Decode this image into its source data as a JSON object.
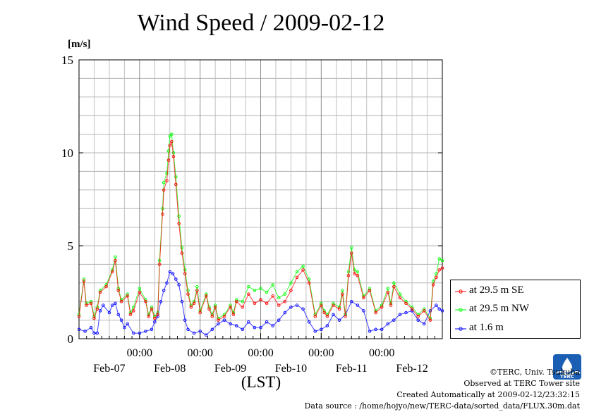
{
  "header": {
    "title": "Wind Speed / 2009-02-12",
    "unit": "[m/s]"
  },
  "credits": {
    "copyright": "©TERC, Univ. Tsukuba",
    "observed": "Observed at TERC Tower site",
    "created": "Created Automatically at 2009-02-12/23:32:15",
    "source": "Data source : /home/hojyo/new/TERC-data/sorted_data/FLUX.30m.dat"
  },
  "chart_data": {
    "type": "line",
    "title": "Wind Speed / 2009-02-12",
    "ylabel": "[m/s]",
    "xlabel": "(LST)",
    "ylim": [
      0,
      15
    ],
    "yticks": [
      0,
      5,
      10,
      15
    ],
    "xlim": [
      0,
      6
    ],
    "x_time_ticks": [
      {
        "x": 1,
        "label": "00:00"
      },
      {
        "x": 2,
        "label": "00:00"
      },
      {
        "x": 3,
        "label": "00:00"
      },
      {
        "x": 4,
        "label": "00:00"
      },
      {
        "x": 5,
        "label": "00:00"
      }
    ],
    "x_date_labels": [
      {
        "x": 0.5,
        "label": "Feb-07"
      },
      {
        "x": 1.5,
        "label": "Feb-08"
      },
      {
        "x": 2.5,
        "label": "Feb-09"
      },
      {
        "x": 3.5,
        "label": "Feb-10"
      },
      {
        "x": 4.5,
        "label": "Feb-11"
      },
      {
        "x": 5.5,
        "label": "Feb-12"
      }
    ],
    "grid": true,
    "legend_position": "bottom-right, outside plot",
    "series": [
      {
        "name": "at 29.5 m SE",
        "color": "#ff0000",
        "points": [
          [
            0,
            1.2
          ],
          [
            0.08,
            3.1
          ],
          [
            0.12,
            1.8
          ],
          [
            0.2,
            1.9
          ],
          [
            0.25,
            1.1
          ],
          [
            0.3,
            1.6
          ],
          [
            0.35,
            2.5
          ],
          [
            0.45,
            2.8
          ],
          [
            0.55,
            3.6
          ],
          [
            0.6,
            4.2
          ],
          [
            0.65,
            2.6
          ],
          [
            0.7,
            2.0
          ],
          [
            0.8,
            2.3
          ],
          [
            0.85,
            1.3
          ],
          [
            0.9,
            1.5
          ],
          [
            1,
            2.5
          ],
          [
            1.1,
            2.0
          ],
          [
            1.15,
            1.2
          ],
          [
            1.2,
            1.6
          ],
          [
            1.25,
            1.1
          ],
          [
            1.3,
            1.3
          ],
          [
            1.33,
            4.0
          ],
          [
            1.38,
            6.7
          ],
          [
            1.4,
            8.0
          ],
          [
            1.45,
            8.5
          ],
          [
            1.48,
            9.6
          ],
          [
            1.5,
            10.4
          ],
          [
            1.53,
            10.6
          ],
          [
            1.56,
            9.8
          ],
          [
            1.6,
            8.3
          ],
          [
            1.65,
            6.2
          ],
          [
            1.7,
            4.6
          ],
          [
            1.75,
            3.5
          ],
          [
            1.8,
            2.4
          ],
          [
            1.85,
            1.7
          ],
          [
            1.9,
            1.9
          ],
          [
            1.95,
            2.6
          ],
          [
            2,
            1.4
          ],
          [
            2.1,
            2.3
          ],
          [
            2.15,
            1.6
          ],
          [
            2.2,
            1.2
          ],
          [
            2.25,
            1.7
          ],
          [
            2.3,
            1.0
          ],
          [
            2.4,
            1.2
          ],
          [
            2.5,
            1.7
          ],
          [
            2.55,
            1.3
          ],
          [
            2.6,
            2.0
          ],
          [
            2.7,
            1.7
          ],
          [
            2.8,
            2.4
          ],
          [
            2.9,
            1.9
          ],
          [
            3.0,
            2.1
          ],
          [
            3.1,
            1.9
          ],
          [
            3.2,
            2.3
          ],
          [
            3.3,
            1.8
          ],
          [
            3.4,
            2.0
          ],
          [
            3.5,
            2.6
          ],
          [
            3.6,
            3.3
          ],
          [
            3.7,
            3.7
          ],
          [
            3.8,
            3.0
          ],
          [
            3.9,
            1.2
          ],
          [
            4.0,
            1.8
          ],
          [
            4.05,
            1.4
          ],
          [
            4.1,
            1.2
          ],
          [
            4.2,
            1.8
          ],
          [
            4.3,
            1.6
          ],
          [
            4.35,
            2.4
          ],
          [
            4.4,
            1.2
          ],
          [
            4.45,
            3.4
          ],
          [
            4.5,
            4.6
          ],
          [
            4.55,
            3.5
          ],
          [
            4.6,
            3.4
          ],
          [
            4.7,
            2.2
          ],
          [
            4.8,
            2.6
          ],
          [
            4.9,
            1.4
          ],
          [
            5.0,
            1.7
          ],
          [
            5.1,
            2.5
          ],
          [
            5.15,
            1.8
          ],
          [
            5.2,
            2.8
          ],
          [
            5.3,
            2.2
          ],
          [
            5.4,
            1.9
          ],
          [
            5.5,
            1.6
          ],
          [
            5.6,
            1.2
          ],
          [
            5.7,
            1.5
          ],
          [
            5.8,
            1.0
          ],
          [
            5.85,
            2.9
          ],
          [
            5.9,
            3.3
          ],
          [
            5.95,
            3.7
          ],
          [
            6.0,
            3.8
          ]
        ]
      },
      {
        "name": "at 29.5 m NW",
        "color": "#00ff00",
        "points": [
          [
            0,
            1.3
          ],
          [
            0.08,
            3.2
          ],
          [
            0.12,
            1.9
          ],
          [
            0.2,
            2.0
          ],
          [
            0.25,
            1.2
          ],
          [
            0.3,
            1.7
          ],
          [
            0.35,
            2.6
          ],
          [
            0.45,
            2.9
          ],
          [
            0.55,
            3.7
          ],
          [
            0.6,
            4.4
          ],
          [
            0.65,
            2.7
          ],
          [
            0.7,
            2.1
          ],
          [
            0.8,
            2.4
          ],
          [
            0.85,
            1.4
          ],
          [
            0.9,
            1.7
          ],
          [
            1,
            2.7
          ],
          [
            1.1,
            2.1
          ],
          [
            1.15,
            1.3
          ],
          [
            1.2,
            1.7
          ],
          [
            1.25,
            1.2
          ],
          [
            1.3,
            1.4
          ],
          [
            1.33,
            4.2
          ],
          [
            1.38,
            7.0
          ],
          [
            1.4,
            8.4
          ],
          [
            1.45,
            8.9
          ],
          [
            1.48,
            10.1
          ],
          [
            1.5,
            10.9
          ],
          [
            1.53,
            11.0
          ],
          [
            1.56,
            10.0
          ],
          [
            1.6,
            8.7
          ],
          [
            1.65,
            6.6
          ],
          [
            1.7,
            4.9
          ],
          [
            1.75,
            3.7
          ],
          [
            1.8,
            2.6
          ],
          [
            1.85,
            1.8
          ],
          [
            1.9,
            2.0
          ],
          [
            1.95,
            2.8
          ],
          [
            2,
            1.5
          ],
          [
            2.1,
            2.4
          ],
          [
            2.15,
            1.7
          ],
          [
            2.2,
            1.3
          ],
          [
            2.25,
            1.8
          ],
          [
            2.3,
            1.1
          ],
          [
            2.4,
            1.3
          ],
          [
            2.5,
            1.8
          ],
          [
            2.55,
            1.4
          ],
          [
            2.6,
            2.1
          ],
          [
            2.7,
            2.0
          ],
          [
            2.8,
            2.8
          ],
          [
            2.9,
            2.6
          ],
          [
            3.0,
            2.7
          ],
          [
            3.1,
            2.5
          ],
          [
            3.2,
            2.9
          ],
          [
            3.3,
            2.2
          ],
          [
            3.4,
            2.4
          ],
          [
            3.5,
            3.0
          ],
          [
            3.6,
            3.6
          ],
          [
            3.7,
            3.9
          ],
          [
            3.8,
            3.2
          ],
          [
            3.9,
            1.3
          ],
          [
            4.0,
            1.9
          ],
          [
            4.05,
            1.5
          ],
          [
            4.1,
            1.3
          ],
          [
            4.2,
            1.9
          ],
          [
            4.3,
            1.7
          ],
          [
            4.35,
            2.6
          ],
          [
            4.4,
            1.3
          ],
          [
            4.45,
            3.6
          ],
          [
            4.5,
            4.9
          ],
          [
            4.55,
            3.7
          ],
          [
            4.6,
            3.6
          ],
          [
            4.7,
            2.3
          ],
          [
            4.8,
            2.7
          ],
          [
            4.9,
            1.5
          ],
          [
            5.0,
            1.8
          ],
          [
            5.1,
            2.7
          ],
          [
            5.15,
            1.9
          ],
          [
            5.2,
            3.0
          ],
          [
            5.3,
            2.4
          ],
          [
            5.4,
            2.0
          ],
          [
            5.5,
            1.7
          ],
          [
            5.6,
            1.3
          ],
          [
            5.7,
            1.6
          ],
          [
            5.8,
            1.1
          ],
          [
            5.85,
            3.1
          ],
          [
            5.9,
            3.5
          ],
          [
            5.95,
            4.3
          ],
          [
            6.0,
            4.2
          ]
        ]
      },
      {
        "name": "at 1.6 m",
        "color": "#0000ff",
        "points": [
          [
            0,
            0.5
          ],
          [
            0.1,
            0.4
          ],
          [
            0.2,
            0.6
          ],
          [
            0.25,
            0.3
          ],
          [
            0.3,
            0.3
          ],
          [
            0.35,
            1.5
          ],
          [
            0.4,
            1.8
          ],
          [
            0.5,
            1.4
          ],
          [
            0.55,
            1.8
          ],
          [
            0.6,
            1.9
          ],
          [
            0.65,
            1.3
          ],
          [
            0.7,
            1.0
          ],
          [
            0.75,
            0.6
          ],
          [
            0.8,
            0.8
          ],
          [
            0.9,
            0.3
          ],
          [
            1.0,
            0.3
          ],
          [
            1.1,
            0.4
          ],
          [
            1.2,
            0.5
          ],
          [
            1.25,
            0.9
          ],
          [
            1.3,
            1.2
          ],
          [
            1.35,
            2.0
          ],
          [
            1.4,
            2.6
          ],
          [
            1.45,
            3.0
          ],
          [
            1.5,
            3.6
          ],
          [
            1.55,
            3.5
          ],
          [
            1.6,
            3.2
          ],
          [
            1.65,
            2.9
          ],
          [
            1.7,
            2.0
          ],
          [
            1.75,
            1.0
          ],
          [
            1.8,
            0.5
          ],
          [
            1.9,
            0.3
          ],
          [
            2.0,
            0.4
          ],
          [
            2.1,
            0.2
          ],
          [
            2.2,
            0.5
          ],
          [
            2.3,
            0.8
          ],
          [
            2.4,
            1.0
          ],
          [
            2.5,
            0.8
          ],
          [
            2.6,
            0.7
          ],
          [
            2.7,
            0.5
          ],
          [
            2.8,
            0.9
          ],
          [
            2.9,
            0.6
          ],
          [
            3.0,
            0.6
          ],
          [
            3.1,
            0.9
          ],
          [
            3.2,
            0.7
          ],
          [
            3.3,
            1.0
          ],
          [
            3.4,
            1.4
          ],
          [
            3.5,
            1.7
          ],
          [
            3.6,
            1.8
          ],
          [
            3.7,
            1.6
          ],
          [
            3.8,
            0.9
          ],
          [
            3.9,
            0.4
          ],
          [
            4.0,
            0.5
          ],
          [
            4.1,
            0.7
          ],
          [
            4.2,
            1.3
          ],
          [
            4.3,
            1.0
          ],
          [
            4.4,
            1.3
          ],
          [
            4.5,
            2.0
          ],
          [
            4.6,
            1.8
          ],
          [
            4.7,
            1.5
          ],
          [
            4.8,
            0.4
          ],
          [
            4.9,
            0.5
          ],
          [
            5.0,
            0.5
          ],
          [
            5.1,
            0.8
          ],
          [
            5.2,
            1.0
          ],
          [
            5.3,
            1.3
          ],
          [
            5.4,
            1.4
          ],
          [
            5.5,
            1.5
          ],
          [
            5.6,
            1.0
          ],
          [
            5.7,
            0.8
          ],
          [
            5.8,
            1.5
          ],
          [
            5.9,
            1.8
          ],
          [
            5.95,
            1.6
          ],
          [
            6.0,
            1.5
          ]
        ]
      }
    ]
  }
}
